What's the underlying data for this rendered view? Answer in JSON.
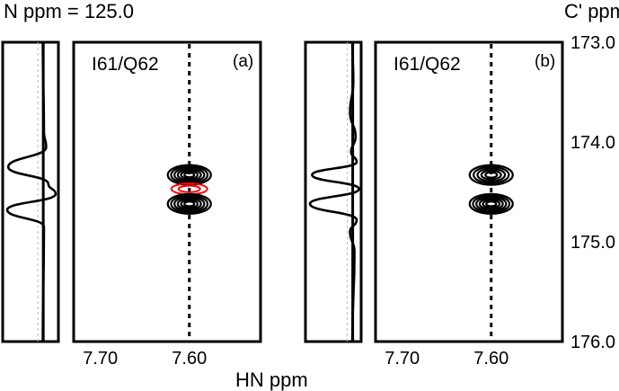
{
  "header": {
    "left_label": "N ppm = 125.0",
    "right_label": "C' ppm"
  },
  "chart_data": {
    "type": "scatter",
    "title": "",
    "xlabel": "HN ppm",
    "ylabel": "C' ppm",
    "xlim": [
      7.73,
      7.52
    ],
    "ylim": [
      173.0,
      176.0
    ],
    "x_ticks": [
      "7.70",
      "7.60"
    ],
    "x_tick_values": [
      7.7,
      7.6
    ],
    "y_ticks": [
      "173.0",
      "174.0",
      "175.0",
      "176.0"
    ],
    "y_tick_values": [
      173.0,
      174.0,
      175.0,
      176.0
    ],
    "grid": false,
    "panels": [
      {
        "label": "(a)",
        "residue_label": "I61/Q62",
        "marker_x": 7.6,
        "peaks": [
          {
            "x": 7.6,
            "y": 174.33,
            "color": "#000000",
            "rings": 6
          },
          {
            "x": 7.6,
            "y": 174.47,
            "color": "#ff0000",
            "rings": 2
          },
          {
            "x": 7.6,
            "y": 174.62,
            "color": "#000000",
            "rings": 6
          }
        ],
        "projection": {
          "line_x": 0.68,
          "trace": [
            [
              173.0,
              0.72
            ],
            [
              173.9,
              0.74
            ],
            [
              174.05,
              0.78
            ],
            [
              174.25,
              0.1
            ],
            [
              174.42,
              0.82
            ],
            [
              174.52,
              0.95
            ],
            [
              174.68,
              0.08
            ],
            [
              174.85,
              0.74
            ],
            [
              176.0,
              0.72
            ]
          ]
        }
      },
      {
        "label": "(b)",
        "residue_label": "I61/Q62",
        "marker_x": 7.6,
        "peaks": [
          {
            "x": 7.6,
            "y": 174.33,
            "color": "#000000",
            "rings": 5
          },
          {
            "x": 7.6,
            "y": 174.62,
            "color": "#000000",
            "rings": 6
          }
        ],
        "projection": {
          "line_x": 0.8,
          "trace": [
            [
              173.0,
              0.84
            ],
            [
              173.4,
              0.86
            ],
            [
              173.7,
              0.8
            ],
            [
              173.95,
              0.9
            ],
            [
              174.1,
              0.82
            ],
            [
              174.2,
              0.92
            ],
            [
              174.33,
              0.12
            ],
            [
              174.47,
              0.96
            ],
            [
              174.62,
              0.08
            ],
            [
              174.78,
              0.92
            ],
            [
              174.9,
              0.8
            ],
            [
              175.1,
              0.88
            ],
            [
              176.0,
              0.84
            ]
          ]
        }
      }
    ]
  },
  "colors": {
    "contour_black": "#000000",
    "contour_red": "#ff0000",
    "guide": "#bbbbbb"
  }
}
